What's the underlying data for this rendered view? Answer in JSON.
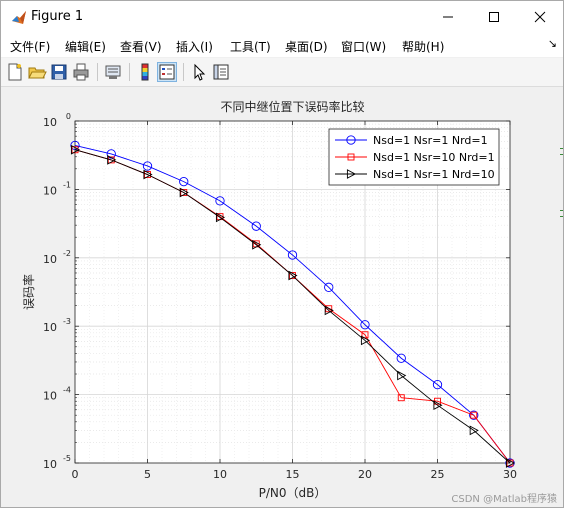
{
  "window": {
    "title": "Figure 1",
    "minimize_symbol": "—",
    "close_symbol": "✕"
  },
  "menu": {
    "items": [
      "文件(F)",
      "编辑(E)",
      "查看(V)",
      "插入(I)",
      "工具(T)",
      "桌面(D)",
      "窗口(W)",
      "帮助(H)"
    ],
    "dock_arrow": "↘"
  },
  "toolbar": {
    "icons": [
      "new-figure-icon",
      "open-file-icon",
      "save-icon",
      "print-icon",
      "print-preview-icon",
      "colorbar-icon",
      "legend-icon",
      "pointer-icon",
      "property-inspector-icon"
    ]
  },
  "watermark": "CSDN @Matlab程序猿",
  "chart_data": {
    "type": "line",
    "title": "不同中继位置下误码率比较",
    "xlabel": "P/N0（dB）",
    "ylabel": "误码率",
    "xlim": [
      0,
      30
    ],
    "ylim": [
      1e-05,
      1
    ],
    "yscale": "log",
    "grid": true,
    "minor_grid": true,
    "legend_position": "top-right",
    "xticks": [
      0,
      5,
      10,
      15,
      20,
      25,
      30
    ],
    "xtick_labels": [
      "0",
      "5",
      "10",
      "15",
      "20",
      "25",
      "30"
    ],
    "yticks": [
      1e-05,
      0.0001,
      0.001,
      0.01,
      0.1,
      1
    ],
    "ytick_labels": [
      {
        "base": "10",
        "exp": "-5"
      },
      {
        "base": "10",
        "exp": "-4"
      },
      {
        "base": "10",
        "exp": "-3"
      },
      {
        "base": "10",
        "exp": "-2"
      },
      {
        "base": "10",
        "exp": "-1"
      },
      {
        "base": "10",
        "exp": "0"
      }
    ],
    "series": [
      {
        "name": "Nsd=1 Nsr=1 Nrd=1",
        "color": "#0000ff",
        "marker": "circle",
        "x": [
          0,
          2.5,
          5,
          7.5,
          10,
          12.5,
          15,
          17.5,
          20,
          22.5,
          25,
          27.5,
          30
        ],
        "values": [
          0.44,
          0.33,
          0.22,
          0.13,
          0.068,
          0.029,
          0.011,
          0.0037,
          0.00105,
          0.00034,
          0.00014,
          5e-05,
          1e-05
        ]
      },
      {
        "name": "Nsd=1 Nsr=10 Nrd=1",
        "color": "#ff0000",
        "marker": "square",
        "x": [
          0,
          2.5,
          5,
          7.5,
          10,
          12.5,
          15,
          17.5,
          20,
          22.5,
          25,
          27.5,
          30
        ],
        "values": [
          0.38,
          0.27,
          0.165,
          0.09,
          0.04,
          0.016,
          0.0055,
          0.0018,
          0.00075,
          9e-05,
          8e-05,
          5e-05,
          1e-05
        ]
      },
      {
        "name": "Nsd=1 Nsr=1 Nrd=10",
        "color": "#000000",
        "marker": "triangle-right",
        "x": [
          0,
          2.5,
          5,
          7.5,
          10,
          12.5,
          15,
          17.5,
          20,
          22.5,
          25,
          27.5,
          30
        ],
        "values": [
          0.38,
          0.27,
          0.165,
          0.09,
          0.039,
          0.0155,
          0.0055,
          0.0017,
          0.00062,
          0.00019,
          7e-05,
          3e-05,
          1e-05
        ]
      }
    ]
  }
}
